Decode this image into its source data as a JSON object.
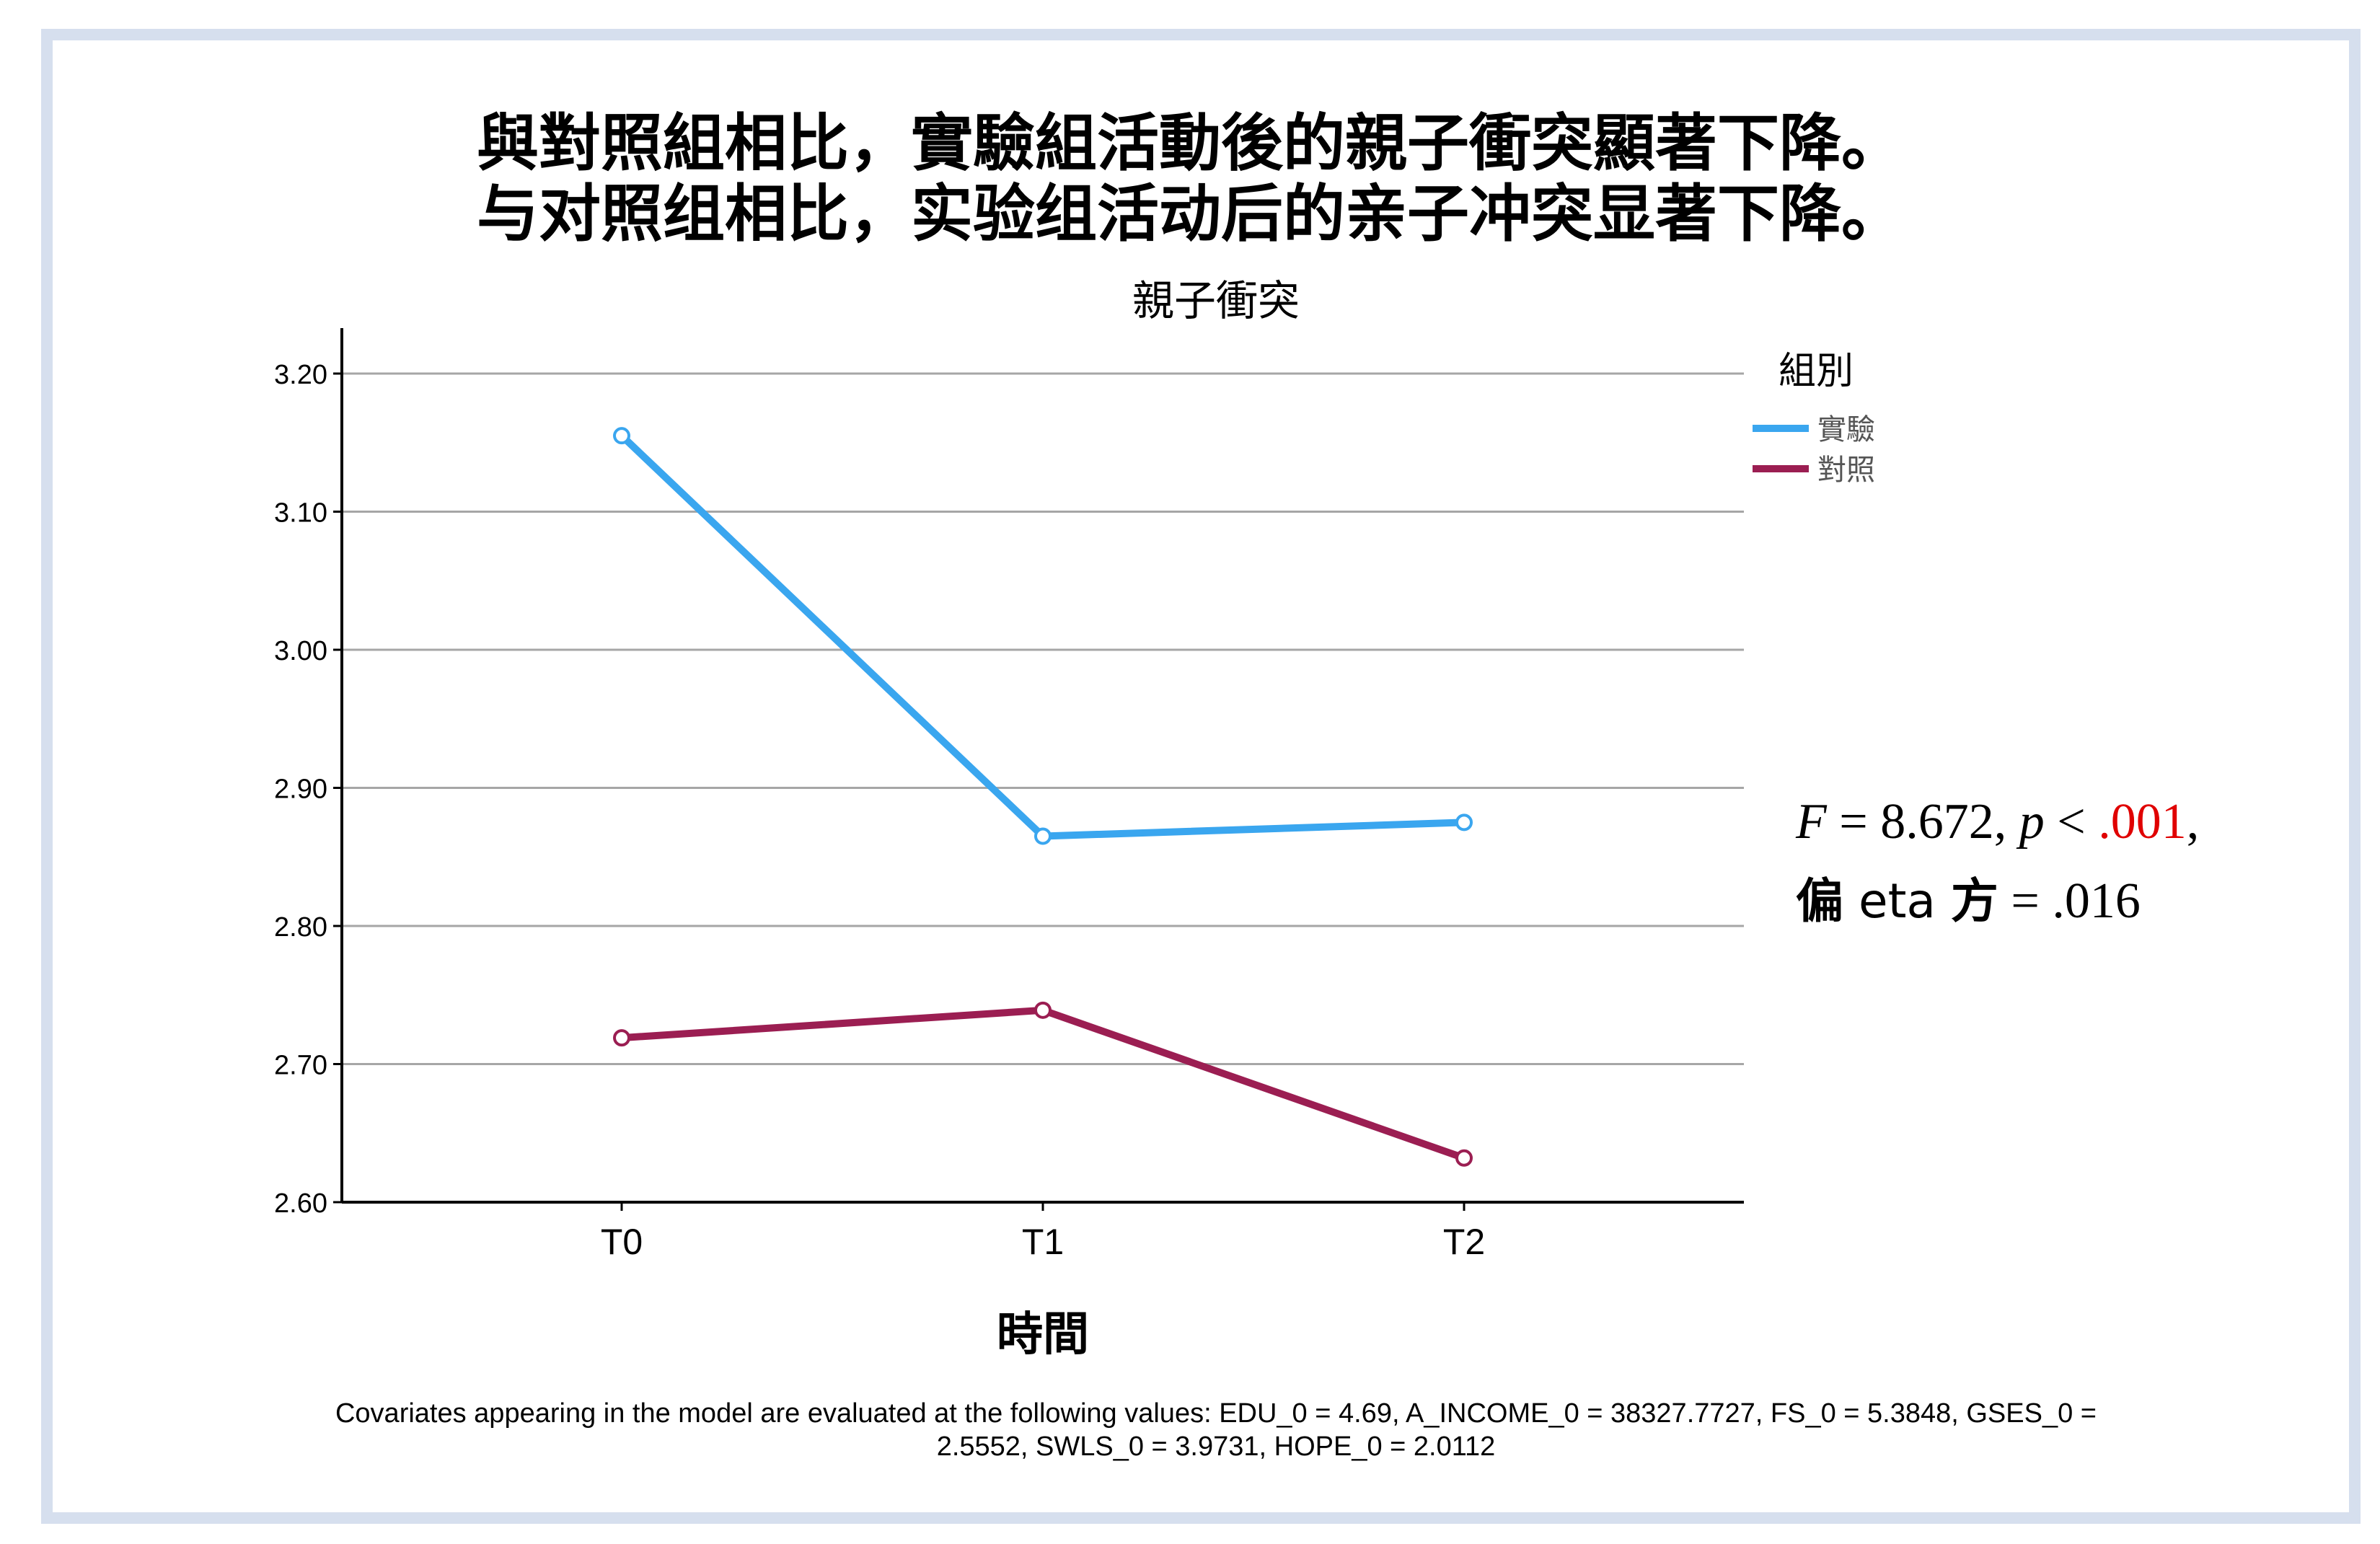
{
  "headline": {
    "traditional": "與對照組相比，實驗組活動後的親子衝突顯著下降。",
    "simplified": "与对照组相比，实验组活动后的亲子冲突显著下降。"
  },
  "stats": {
    "F_label": "F",
    "F_value": " = 8.672, ",
    "p_label": "p",
    "p_op": " < ",
    "p_value": ".001",
    "p_trail": ",",
    "eta_cjk1": "偏",
    "eta_word": " eta ",
    "eta_cjk2": "方",
    "eta_value": " = .016"
  },
  "chart_data": {
    "type": "line",
    "title": "親子衝突",
    "xlabel": "時間",
    "ylabel": "",
    "categories": [
      "T0",
      "T1",
      "T2"
    ],
    "ylim": [
      2.6,
      3.2
    ],
    "yticks": [
      "2.60",
      "2.70",
      "2.80",
      "2.90",
      "3.00",
      "3.10",
      "3.20"
    ],
    "grid": true,
    "legend": {
      "title": "組別",
      "placement": "top-right"
    },
    "series": [
      {
        "name": "實驗",
        "color": "#3aa6ef",
        "values": [
          3.155,
          2.865,
          2.875
        ]
      },
      {
        "name": "對照",
        "color": "#9b1e52",
        "values": [
          2.719,
          2.739,
          2.632
        ]
      }
    ],
    "footnote": [
      "Covariates appearing in the model are evaluated at the following values: EDU_0 = 4.69, A_INCOME_0 = 38327.7727, FS_0 = 5.3848, GSES_0 =",
      "2.5552, SWLS_0 = 3.9731, HOPE_0 = 2.0112"
    ]
  }
}
